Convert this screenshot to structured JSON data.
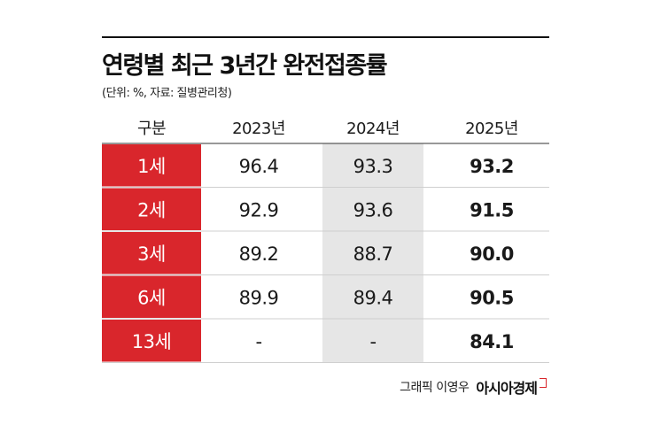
{
  "title": "연령별 최근 3년간 완전접종률",
  "subtitle": "(단위: %, 자료: 질병관리청)",
  "credit": "그래픽 이영우",
  "brand": "아시아경제",
  "colors": {
    "accent": "#d9262c",
    "highlight": "#e6e6e6",
    "text": "#1a1a1a"
  },
  "chart_data": {
    "type": "table",
    "header_label": "구분",
    "columns": [
      "2023년",
      "2024년",
      "2025년"
    ],
    "rows": [
      {
        "label": "1세",
        "values": [
          "96.4",
          "93.3",
          "93.2"
        ]
      },
      {
        "label": "2세",
        "values": [
          "92.9",
          "93.6",
          "91.5"
        ]
      },
      {
        "label": "3세",
        "values": [
          "89.2",
          "88.7",
          "90.0"
        ]
      },
      {
        "label": "6세",
        "values": [
          "89.9",
          "89.4",
          "90.5"
        ]
      },
      {
        "label": "13세",
        "values": [
          "-",
          "-",
          "84.1"
        ]
      }
    ],
    "highlighted_column": "2024년",
    "emphasized_column": "2025년"
  }
}
